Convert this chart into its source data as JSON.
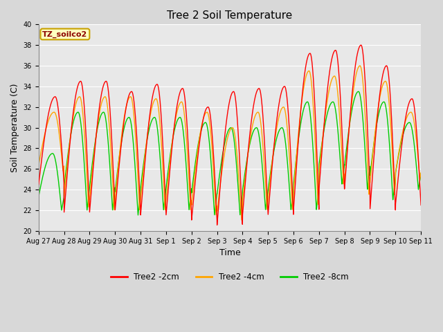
{
  "title": "Tree 2 Soil Temperature",
  "xlabel": "Time",
  "ylabel": "Soil Temperature (C)",
  "ylim": [
    20,
    40
  ],
  "yticks": [
    20,
    22,
    24,
    26,
    28,
    30,
    32,
    34,
    36,
    38,
    40
  ],
  "annotation_text": "TZ_soilco2",
  "annotation_box_color": "#FFFFC0",
  "annotation_text_color": "#8B0000",
  "annotation_border_color": "#C8A000",
  "figure_bg_color": "#D8D8D8",
  "plot_bg_color": "#E8E8E8",
  "grid_color": "#FFFFFF",
  "series": {
    "2cm": {
      "color": "#FF0000",
      "label": "Tree2 -2cm"
    },
    "4cm": {
      "color": "#FFA500",
      "label": "Tree2 -4cm"
    },
    "8cm": {
      "color": "#00CC00",
      "label": "Tree2 -8cm"
    }
  },
  "x_tick_labels": [
    "Aug 27",
    "Aug 28",
    "Aug 29",
    "Aug 30",
    "Aug 31",
    "Sep 1",
    "Sep 2",
    "Sep 3",
    "Sep 4",
    "Sep 5",
    "Sep 6",
    "Sep 7",
    "Sep 8",
    "Sep 9",
    "Sep 10",
    "Sep 11"
  ],
  "title_fontsize": 11,
  "axis_label_fontsize": 9,
  "tick_fontsize": 7,
  "linewidth": 1.0,
  "peak_2cm": [
    33.0,
    34.5,
    34.5,
    33.5,
    34.2,
    33.8,
    32.0,
    33.5,
    33.8,
    34.0,
    37.2,
    37.5,
    38.0,
    36.0,
    32.8
  ],
  "trough_2cm": [
    24.5,
    21.8,
    21.8,
    22.0,
    21.5,
    21.5,
    21.0,
    20.5,
    21.5,
    21.5,
    22.0,
    24.0,
    24.0,
    22.0,
    22.5
  ],
  "peak_4cm": [
    31.5,
    33.0,
    33.0,
    33.0,
    32.8,
    32.5,
    31.5,
    30.0,
    31.5,
    32.0,
    35.5,
    35.0,
    36.0,
    34.5,
    31.5
  ],
  "trough_4cm": [
    25.8,
    22.3,
    22.0,
    22.0,
    22.0,
    22.0,
    21.5,
    21.0,
    22.0,
    22.0,
    22.5,
    24.5,
    23.5,
    23.5,
    25.0
  ],
  "peak_8cm": [
    27.5,
    31.5,
    31.5,
    31.0,
    31.0,
    31.0,
    30.5,
    30.0,
    30.0,
    30.0,
    32.5,
    32.5,
    33.5,
    32.5,
    30.5
  ],
  "trough_8cm": [
    22.0,
    22.0,
    22.0,
    21.5,
    22.0,
    22.0,
    21.5,
    21.5,
    22.0,
    22.0,
    22.0,
    24.5,
    24.0,
    23.0,
    24.0
  ]
}
